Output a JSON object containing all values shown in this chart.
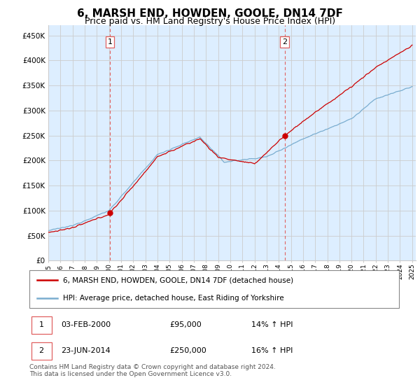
{
  "title": "6, MARSH END, HOWDEN, GOOLE, DN14 7DF",
  "subtitle": "Price paid vs. HM Land Registry's House Price Index (HPI)",
  "ylim": [
    0,
    470000
  ],
  "yticks": [
    0,
    50000,
    100000,
    150000,
    200000,
    250000,
    300000,
    350000,
    400000,
    450000
  ],
  "ytick_labels": [
    "£0",
    "£50K",
    "£100K",
    "£150K",
    "£200K",
    "£250K",
    "£300K",
    "£350K",
    "£400K",
    "£450K"
  ],
  "x_start_year": 1995,
  "x_end_year": 2025,
  "sale1_date": 2000.09,
  "sale1_price": 95000,
  "sale2_date": 2014.48,
  "sale2_price": 250000,
  "red_line_color": "#cc0000",
  "blue_line_color": "#7aadcf",
  "bg_fill_color": "#ddeeff",
  "dashed_vline_color": "#e06060",
  "background_color": "#ffffff",
  "grid_color": "#cccccc",
  "legend1_text": "6, MARSH END, HOWDEN, GOOLE, DN14 7DF (detached house)",
  "legend2_text": "HPI: Average price, detached house, East Riding of Yorkshire",
  "table_row1": [
    "1",
    "03-FEB-2000",
    "£95,000",
    "14% ↑ HPI"
  ],
  "table_row2": [
    "2",
    "23-JUN-2014",
    "£250,000",
    "16% ↑ HPI"
  ],
  "footnote": "Contains HM Land Registry data © Crown copyright and database right 2024.\nThis data is licensed under the Open Government Licence v3.0.",
  "title_fontsize": 11,
  "subtitle_fontsize": 9
}
